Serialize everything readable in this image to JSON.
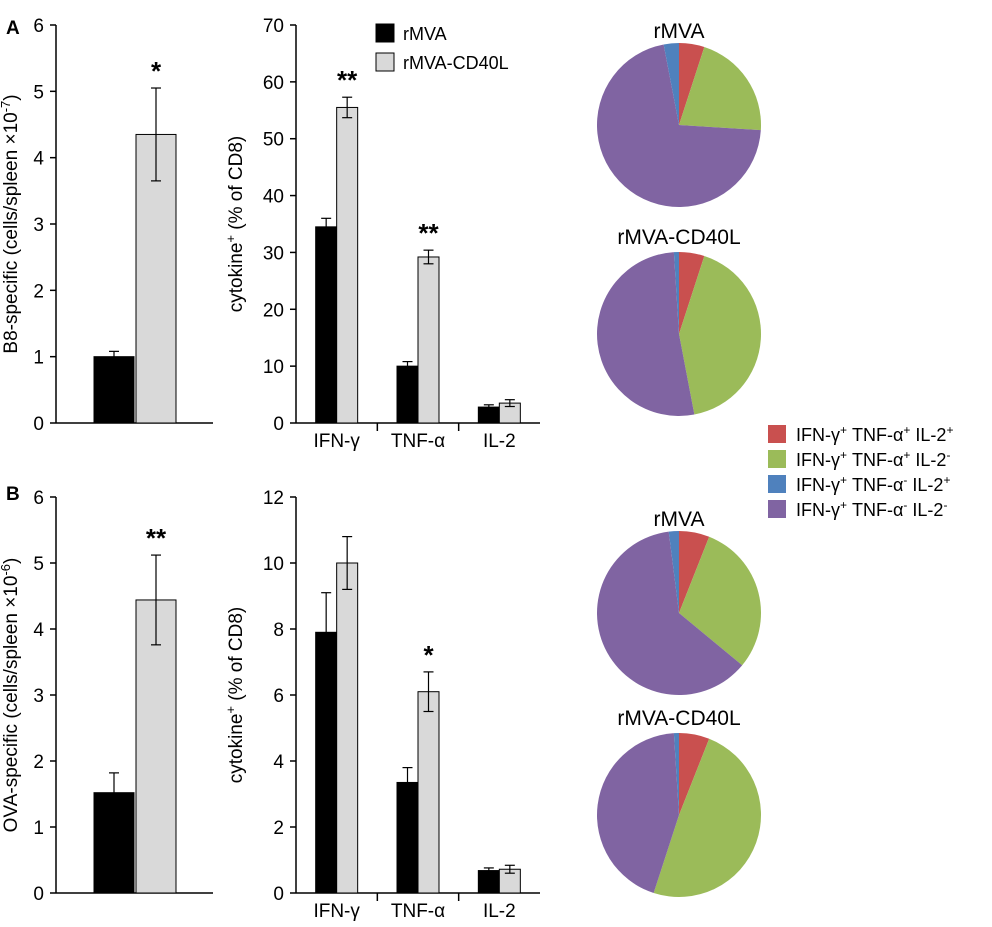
{
  "panels": [
    {
      "label": "A"
    },
    {
      "label": "B"
    }
  ],
  "chart_data": [
    {
      "type": "bar",
      "id": "A-cells",
      "categories": [
        "rMVA",
        "rMVA-CD40L"
      ],
      "values": [
        1.0,
        4.35
      ],
      "errors": [
        0.08,
        0.7
      ],
      "colors": [
        "#000000",
        "#d9d9d9"
      ],
      "ylim": [
        0,
        6
      ],
      "yticks": [
        0,
        1,
        2,
        3,
        4,
        5,
        6
      ],
      "ylabel": "B8-specific (cells/spleen ×10",
      "ylabel_sup": "-7",
      "ylabel_end": ")",
      "annotations": [
        "",
        "*"
      ]
    },
    {
      "type": "bar",
      "id": "A-cytokine",
      "categories": [
        "IFN-γ",
        "TNF-α",
        "IL-2"
      ],
      "series": [
        {
          "name": "rMVA",
          "color": "#000000",
          "values": [
            34.5,
            10.0,
            2.8
          ],
          "errors": [
            1.5,
            0.8,
            0.4
          ]
        },
        {
          "name": "rMVA-CD40L",
          "color": "#d9d9d9",
          "values": [
            55.5,
            29.2,
            3.5
          ],
          "errors": [
            1.8,
            1.2,
            0.6
          ]
        }
      ],
      "ylim": [
        0,
        70
      ],
      "yticks": [
        0,
        10,
        20,
        30,
        40,
        50,
        60,
        70
      ],
      "ylabel": "cytokine",
      "ylabel_sup": "+",
      "ylabel_end": " (% of CD8)",
      "annotations": [
        "**",
        "**",
        ""
      ],
      "legend": [
        "rMVA",
        "rMVA-CD40L"
      ]
    },
    {
      "type": "bar",
      "id": "B-cells",
      "categories": [
        "rMVA",
        "rMVA-CD40L"
      ],
      "values": [
        1.52,
        4.44
      ],
      "errors": [
        0.3,
        0.68
      ],
      "colors": [
        "#000000",
        "#d9d9d9"
      ],
      "ylim": [
        0,
        6
      ],
      "yticks": [
        0,
        1,
        2,
        3,
        4,
        5,
        6
      ],
      "ylabel": "OVA-specific (cells/spleen ×10",
      "ylabel_sup": "-6",
      "ylabel_end": ")",
      "annotations": [
        "",
        "**"
      ]
    },
    {
      "type": "bar",
      "id": "B-cytokine",
      "categories": [
        "IFN-γ",
        "TNF-α",
        "IL-2"
      ],
      "series": [
        {
          "name": "rMVA",
          "color": "#000000",
          "values": [
            7.9,
            3.35,
            0.68
          ],
          "errors": [
            1.2,
            0.45,
            0.08
          ]
        },
        {
          "name": "rMVA-CD40L",
          "color": "#d9d9d9",
          "values": [
            10.0,
            6.1,
            0.72
          ],
          "errors": [
            0.8,
            0.6,
            0.12
          ]
        }
      ],
      "ylim": [
        0,
        12
      ],
      "yticks": [
        0,
        2,
        4,
        6,
        8,
        10,
        12
      ],
      "ylabel": "cytokine",
      "ylabel_sup": "+",
      "ylabel_end": " (% of CD8)",
      "annotations": [
        "",
        "*",
        ""
      ]
    },
    {
      "type": "pie",
      "id": "A-pie-rMVA",
      "title": "rMVA",
      "labels": [
        "IFN-γ+ TNF-α+ IL-2+",
        "IFN-γ+ TNF-α+ IL-2-",
        "IFN-γ+ TNF-α- IL-2-",
        "IFN-γ+ TNF-α- IL-2+"
      ],
      "values": [
        5,
        21,
        71,
        3
      ]
    },
    {
      "type": "pie",
      "id": "A-pie-rMVA-CD40L",
      "title": "rMVA-CD40L",
      "labels": [
        "IFN-γ+ TNF-α+ IL-2+",
        "IFN-γ+ TNF-α+ IL-2-",
        "IFN-γ+ TNF-α- IL-2-",
        "IFN-γ+ TNF-α- IL-2+"
      ],
      "values": [
        5,
        42,
        52,
        1
      ]
    },
    {
      "type": "pie",
      "id": "B-pie-rMVA",
      "title": "rMVA",
      "labels": [
        "IFN-γ+ TNF-α+ IL-2+",
        "IFN-γ+ TNF-α+ IL-2-",
        "IFN-γ+ TNF-α- IL-2-",
        "IFN-γ+ TNF-α- IL-2+"
      ],
      "values": [
        6,
        30,
        62,
        2
      ]
    },
    {
      "type": "pie",
      "id": "B-pie-rMVA-CD40L",
      "title": "rMVA-CD40L",
      "labels": [
        "IFN-γ+ TNF-α+ IL-2+",
        "IFN-γ+ TNF-α+ IL-2-",
        "IFN-γ+ TNF-α- IL-2-",
        "IFN-γ+ TNF-α- IL-2+"
      ],
      "values": [
        6,
        49,
        44,
        1
      ]
    }
  ],
  "pie_legend": {
    "entries": [
      {
        "parts": [
          [
            "IFN-γ",
            "+"
          ],
          [
            "TNF-α",
            "+"
          ],
          [
            "IL-2",
            "+"
          ]
        ],
        "color": "#c9504f"
      },
      {
        "parts": [
          [
            "IFN-γ",
            "+"
          ],
          [
            "TNF-α",
            "+"
          ],
          [
            "IL-2",
            "-"
          ]
        ],
        "color": "#9bbb59"
      },
      {
        "parts": [
          [
            "IFN-γ",
            "+"
          ],
          [
            "TNF-α",
            "-"
          ],
          [
            "IL-2",
            "+"
          ]
        ],
        "color": "#4f81bd"
      },
      {
        "parts": [
          [
            "IFN-γ",
            "+"
          ],
          [
            "TNF-α",
            "-"
          ],
          [
            "IL-2",
            "-"
          ]
        ],
        "color": "#8064a2"
      }
    ]
  },
  "slice_colors": [
    "#c9504f",
    "#9bbb59",
    "#8064a2",
    "#4f81bd"
  ]
}
